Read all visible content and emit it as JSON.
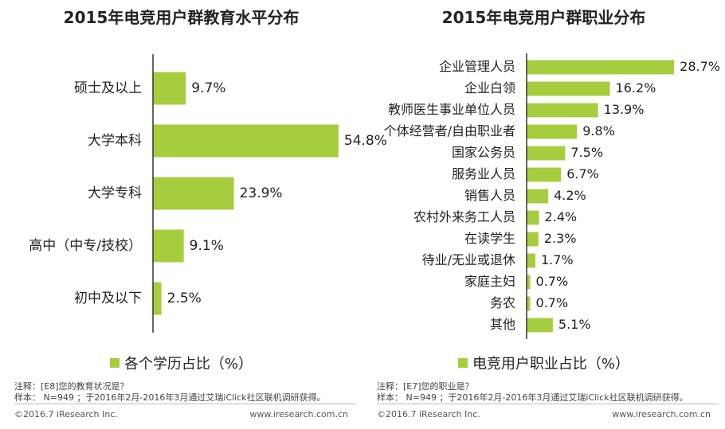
{
  "colors": {
    "bar": "#a6cd3e",
    "axis": "#333333",
    "text": "#222222"
  },
  "chart_data": [
    {
      "type": "bar",
      "orientation": "horizontal",
      "title": "2015年电竞用户群教育水平分布",
      "categories": [
        "硕士及以上",
        "大学本科",
        "大学专科",
        "高中（中专/技校）",
        "初中及以下"
      ],
      "values": [
        9.7,
        54.8,
        23.9,
        9.1,
        2.5
      ],
      "value_labels": [
        "9.7%",
        "54.8%",
        "23.9%",
        "9.1%",
        "2.5%"
      ],
      "legend": "各个学历占比（%）",
      "xlim": [
        0,
        60
      ]
    },
    {
      "type": "bar",
      "orientation": "horizontal",
      "title": "2015年电竞用户群职业分布",
      "categories": [
        "企业管理人员",
        "企业白领",
        "教师医生事业单位人员",
        "个体经营者/自由职业者",
        "国家公务员",
        "服务业人员",
        "销售人员",
        "农村外来务工人员",
        "在读学生",
        "待业/无业或退休",
        "家庭主妇",
        "务农",
        "其他"
      ],
      "values": [
        28.7,
        16.2,
        13.9,
        9.8,
        7.5,
        6.7,
        4.2,
        2.4,
        2.3,
        1.7,
        0.7,
        0.7,
        5.1
      ],
      "value_labels": [
        "28.7%",
        "16.2%",
        "13.9%",
        "9.8%",
        "7.5%",
        "6.7%",
        "4.2%",
        "2.4%",
        "2.3%",
        "1.7%",
        "0.7%",
        "0.7%",
        "5.1%"
      ],
      "legend": "电竞用户职业占比（%）",
      "xlim": [
        0,
        31
      ]
    }
  ],
  "notes": {
    "left": {
      "note": "注释：[E8]您的教育状况是？",
      "sample": "样本： N=949 ；于2016年2月-2016年3月通过艾瑞iClick社区联机调研获得。"
    },
    "right": {
      "note": "注释：[E7]您的职业是？",
      "sample": "样本： N=949 ；于2016年2月-2016年3月通过艾瑞iClick社区联机调研获得。"
    }
  },
  "footer": {
    "left_copyright": "©2016.7 iResearch Inc.",
    "left_site": "www.iresearch.com.cn",
    "right_copyright": "©2016.7 iResearch Inc.",
    "right_site": "www.iresearch.com.cn"
  }
}
